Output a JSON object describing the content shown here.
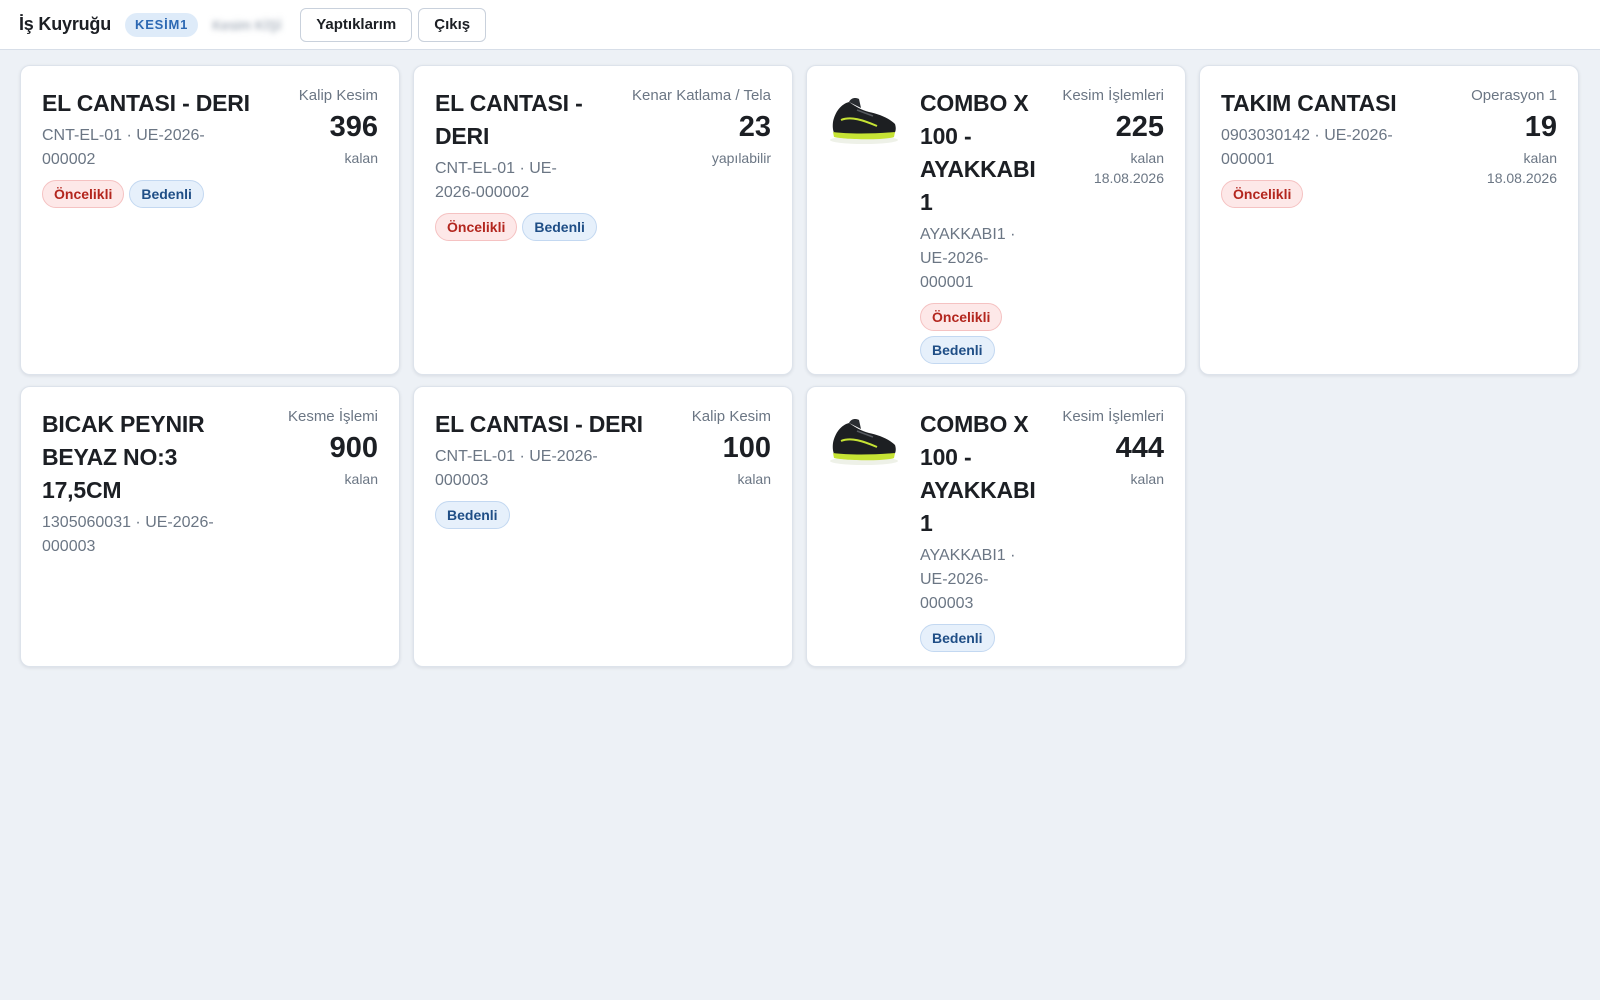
{
  "header": {
    "title": "İş Kuyruğu",
    "station": "KESİM1",
    "user": "Kesim KİŞİ",
    "my_work_label": "Yaptıklarım",
    "logout_label": "Çıkış"
  },
  "badges": {
    "priority": "Öncelikli",
    "sized": "Bedenli"
  },
  "colors": {
    "priority": "#b3261e",
    "sized": "#1f4e86",
    "station": "#2c68b3",
    "background": "#edf1f6"
  },
  "cards": [
    {
      "name": "EL CANTASI - DERI",
      "code": "CNT-EL-01 · UE-2026-000002",
      "operation": "Kalip Kesim",
      "quantity": "396",
      "qty_label": "kalan",
      "due": "",
      "priority": true,
      "sized": true,
      "image": ""
    },
    {
      "name": "EL CANTASI - DERI",
      "code": "CNT-EL-01 · UE-2026-000002",
      "operation": "Kenar Katlama / Tela",
      "quantity": "23",
      "qty_label": "yapılabilir",
      "due": "",
      "priority": true,
      "sized": true,
      "image": ""
    },
    {
      "name": "COMBO X 100 - AYAKKABI 1",
      "code": "AYAKKABI1 · UE-2026-000001",
      "operation": "Kesim İşlemleri",
      "quantity": "225",
      "qty_label": "kalan",
      "due": "18.08.2026",
      "priority": true,
      "sized": true,
      "image": "shoe-icon"
    },
    {
      "name": "TAKIM CANTASI",
      "code": "0903030142 · UE-2026-000001",
      "operation": "Operasyon 1",
      "quantity": "19",
      "qty_label": "kalan",
      "due": "18.08.2026",
      "priority": true,
      "sized": false,
      "image": ""
    },
    {
      "name": "BICAK PEYNIR BEYAZ NO:3 17,5CM",
      "code": "1305060031 · UE-2026-000003",
      "operation": "Kesme İşlemi",
      "quantity": "900",
      "qty_label": "kalan",
      "due": "",
      "priority": false,
      "sized": false,
      "image": ""
    },
    {
      "name": "EL CANTASI - DERI",
      "code": "CNT-EL-01 · UE-2026-000003",
      "operation": "Kalip Kesim",
      "quantity": "100",
      "qty_label": "kalan",
      "due": "",
      "priority": false,
      "sized": true,
      "image": ""
    },
    {
      "name": "COMBO X 100 - AYAKKABI 1",
      "code": "AYAKKABI1 · UE-2026-000003",
      "operation": "Kesim İşlemleri",
      "quantity": "444",
      "qty_label": "kalan",
      "due": "",
      "priority": false,
      "sized": true,
      "image": "shoe-icon"
    }
  ]
}
